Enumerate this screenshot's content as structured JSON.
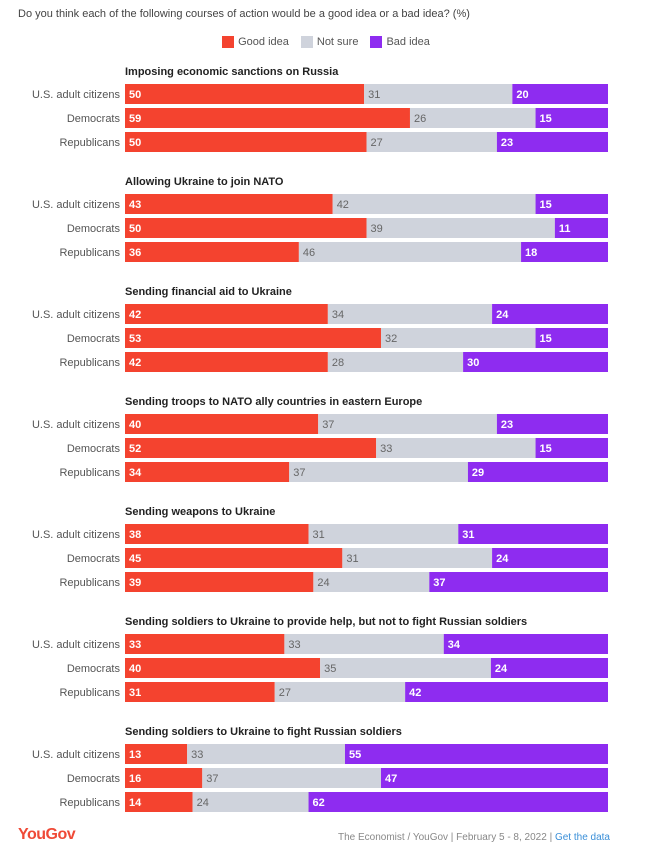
{
  "question": "Do you think each of the following courses of action would be a good idea or a bad idea? (%)",
  "footer": {
    "brand": "YouGov",
    "source": "The Economist / YouGov | February 5 - 8, 2022 |",
    "link": "Get the data"
  },
  "chart_data": {
    "type": "bar",
    "orientation": "horizontal",
    "stacked": true,
    "xlim": [
      0,
      100
    ],
    "grid": false,
    "legend_position": "top-center",
    "series": [
      {
        "name": "Good idea",
        "color": "#f4432f"
      },
      {
        "name": "Not sure",
        "color": "#cfd3dc"
      },
      {
        "name": "Bad idea",
        "color": "#8e2cf0"
      }
    ],
    "groups": [
      {
        "title": "Imposing economic sanctions on Russia",
        "rows": [
          {
            "label": "U.S. adult citizens",
            "values": [
              50,
              31,
              20
            ]
          },
          {
            "label": "Democrats",
            "values": [
              59,
              26,
              15
            ]
          },
          {
            "label": "Republicans",
            "values": [
              50,
              27,
              23
            ]
          }
        ]
      },
      {
        "title": "Allowing Ukraine to join NATO",
        "rows": [
          {
            "label": "U.S. adult citizens",
            "values": [
              43,
              42,
              15
            ]
          },
          {
            "label": "Democrats",
            "values": [
              50,
              39,
              11
            ]
          },
          {
            "label": "Republicans",
            "values": [
              36,
              46,
              18
            ]
          }
        ]
      },
      {
        "title": "Sending financial aid to Ukraine",
        "rows": [
          {
            "label": "U.S. adult citizens",
            "values": [
              42,
              34,
              24
            ]
          },
          {
            "label": "Democrats",
            "values": [
              53,
              32,
              15
            ]
          },
          {
            "label": "Republicans",
            "values": [
              42,
              28,
              30
            ]
          }
        ]
      },
      {
        "title": "Sending troops to NATO ally countries in eastern Europe",
        "rows": [
          {
            "label": "U.S. adult citizens",
            "values": [
              40,
              37,
              23
            ]
          },
          {
            "label": "Democrats",
            "values": [
              52,
              33,
              15
            ]
          },
          {
            "label": "Republicans",
            "values": [
              34,
              37,
              29
            ]
          }
        ]
      },
      {
        "title": "Sending weapons to Ukraine",
        "rows": [
          {
            "label": "U.S. adult citizens",
            "values": [
              38,
              31,
              31
            ]
          },
          {
            "label": "Democrats",
            "values": [
              45,
              31,
              24
            ]
          },
          {
            "label": "Republicans",
            "values": [
              39,
              24,
              37
            ]
          }
        ]
      },
      {
        "title": "Sending soldiers to Ukraine to provide help, but not to fight Russian soldiers",
        "rows": [
          {
            "label": "U.S. adult citizens",
            "values": [
              33,
              33,
              34
            ]
          },
          {
            "label": "Democrats",
            "values": [
              40,
              35,
              24
            ]
          },
          {
            "label": "Republicans",
            "values": [
              31,
              27,
              42
            ]
          }
        ]
      },
      {
        "title": "Sending soldiers to Ukraine to fight Russian soldiers",
        "rows": [
          {
            "label": "U.S. adult citizens",
            "values": [
              13,
              33,
              55
            ]
          },
          {
            "label": "Democrats",
            "values": [
              16,
              37,
              47
            ]
          },
          {
            "label": "Republicans",
            "values": [
              14,
              24,
              62
            ]
          }
        ]
      }
    ]
  }
}
